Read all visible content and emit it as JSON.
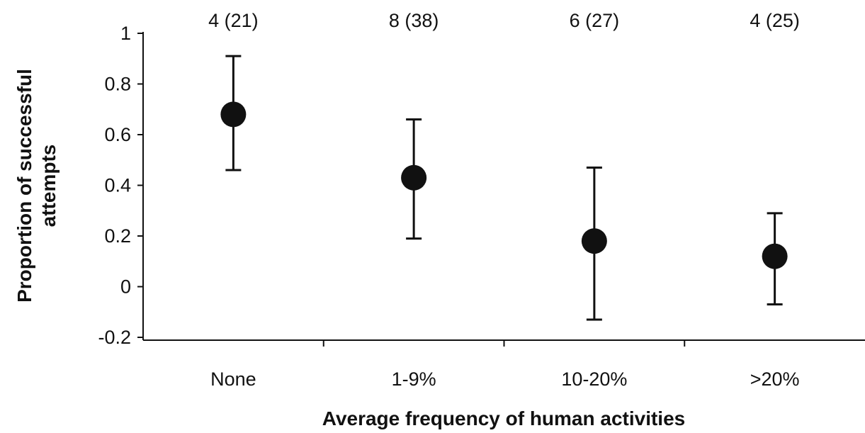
{
  "chart_data": {
    "type": "scatter",
    "title": "",
    "xlabel": "Average frequency of human activities",
    "ylabel_lines": [
      "Proportion of successful",
      "attempts"
    ],
    "categories": [
      "None",
      "1-9%",
      "10-20%",
      ">20%"
    ],
    "top_labels": [
      "4 (21)",
      "8 (38)",
      "6 (27)",
      "4 (25)"
    ],
    "series": [
      {
        "values": [
          0.68,
          0.43,
          0.18,
          0.12
        ],
        "error_low": [
          0.46,
          0.19,
          -0.13,
          -0.07
        ],
        "error_high": [
          0.91,
          0.66,
          0.47,
          0.29
        ]
      }
    ],
    "ylim": [
      -0.2,
      1.0
    ],
    "yticks": [
      -0.2,
      0,
      0.2,
      0.4,
      0.6,
      0.8,
      1
    ],
    "ytick_labels": [
      "-0.2",
      "0",
      "0.2",
      "0.4",
      "0.6",
      "0.8",
      "1"
    ],
    "grid": false,
    "legend": "none",
    "colors": {
      "marker": "#111111",
      "axis": "#111111"
    }
  }
}
